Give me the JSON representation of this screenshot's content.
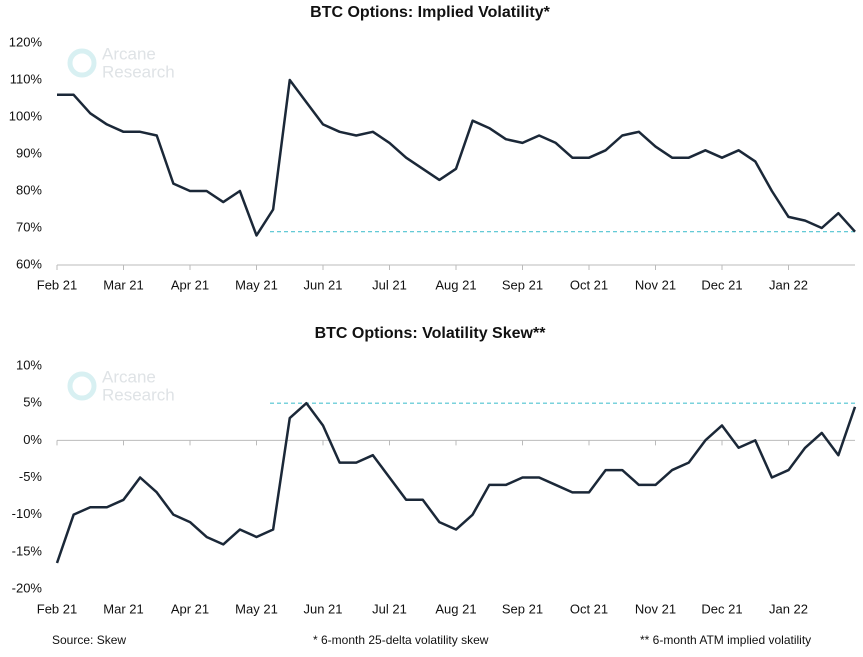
{
  "chart_data": [
    {
      "type": "line",
      "title": "BTC Options: Implied Volatility*",
      "categories": [
        "Feb 21",
        null,
        null,
        null,
        "Mar 21",
        null,
        null,
        null,
        "Apr 21",
        null,
        null,
        null,
        "May 21",
        null,
        null,
        null,
        "Jun 21",
        null,
        null,
        null,
        "Jul 21",
        null,
        null,
        null,
        "Aug 21",
        null,
        null,
        null,
        "Sep 21",
        null,
        null,
        null,
        "Oct 21",
        null,
        null,
        null,
        "Nov 21",
        null,
        null,
        null,
        "Dec 21",
        null,
        null,
        null,
        "Jan 22",
        null,
        null,
        null,
        null
      ],
      "series": [
        {
          "name": "Implied volatility",
          "color": "#1b2838",
          "values": [
            106,
            106,
            101,
            98,
            96,
            96,
            95,
            82,
            80,
            80,
            77,
            80,
            68,
            75,
            110,
            104,
            98,
            96,
            95,
            96,
            93,
            89,
            86,
            83,
            86,
            99,
            97,
            94,
            93,
            95,
            93,
            89,
            89,
            91,
            95,
            96,
            92,
            89,
            89,
            91,
            89,
            91,
            88,
            80,
            73,
            72,
            70,
            74,
            69
          ]
        }
      ],
      "reference_line": 69,
      "reference_color": "#4fc3d0",
      "ylim": [
        60,
        120
      ],
      "yticks": [
        {
          "value": 60,
          "label": "60%"
        },
        {
          "value": 70,
          "label": "70%"
        },
        {
          "value": 80,
          "label": "80%"
        },
        {
          "value": 90,
          "label": "90%"
        },
        {
          "value": 100,
          "label": "100%"
        },
        {
          "value": 110,
          "label": "110%"
        },
        {
          "value": 120,
          "label": "120%"
        }
      ],
      "watermark": [
        "Arcane",
        "Research"
      ]
    },
    {
      "type": "line",
      "title": "BTC Options: Volatility Skew**",
      "categories": [
        "Feb 21",
        null,
        null,
        null,
        "Mar 21",
        null,
        null,
        null,
        "Apr 21",
        null,
        null,
        null,
        "May 21",
        null,
        null,
        null,
        "Jun 21",
        null,
        null,
        null,
        "Jul 21",
        null,
        null,
        null,
        "Aug 21",
        null,
        null,
        null,
        "Sep 21",
        null,
        null,
        null,
        "Oct 21",
        null,
        null,
        null,
        "Nov 21",
        null,
        null,
        null,
        "Dec 21",
        null,
        null,
        null,
        "Jan 22",
        null,
        null,
        null,
        null
      ],
      "series": [
        {
          "name": "Volatility skew",
          "color": "#1b2838",
          "values": [
            -16.5,
            -10,
            -9,
            -9,
            -8,
            -5,
            -7,
            -10,
            -11,
            -13,
            -14,
            -12,
            -13,
            -12,
            3,
            5,
            2,
            -3,
            -3,
            -2,
            -5,
            -8,
            -8,
            -11,
            -12,
            -10,
            -6,
            -6,
            -5,
            -5,
            -6,
            -7,
            -7,
            -4,
            -4,
            -6,
            -6,
            -4,
            -3,
            0,
            2,
            -1,
            0,
            -5,
            -4,
            -1,
            1,
            -2,
            4.5
          ]
        }
      ],
      "reference_line": 5,
      "reference_color": "#4fc3d0",
      "ylim": [
        -20,
        10
      ],
      "yticks": [
        {
          "value": -20,
          "label": "-20%"
        },
        {
          "value": -15,
          "label": "-15%"
        },
        {
          "value": -10,
          "label": "-10%"
        },
        {
          "value": -5,
          "label": "-5%"
        },
        {
          "value": 0,
          "label": "0%"
        },
        {
          "value": 5,
          "label": "5%"
        },
        {
          "value": 10,
          "label": "10%"
        }
      ],
      "watermark": [
        "Arcane",
        "Research"
      ]
    }
  ],
  "footer": {
    "source": "Source: Skew",
    "note1": "* 6-month 25-delta volatility skew",
    "note2": "** 6-month ATM implied volatility"
  }
}
